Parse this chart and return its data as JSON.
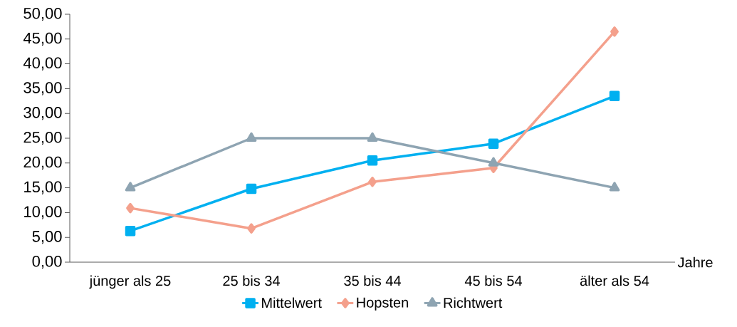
{
  "chart_data": {
    "type": "line",
    "xlabel": "Jahre",
    "categories": [
      "jünger als 25",
      "25 bis 34",
      "35 bis 44",
      "45 bis 54",
      "älter als 54"
    ],
    "series": [
      {
        "name": "Mittelwert",
        "color": "#00b0f0",
        "marker": "square",
        "values": [
          6.3,
          14.8,
          20.5,
          23.9,
          33.5
        ]
      },
      {
        "name": "Hopsten",
        "color": "#f4a08c",
        "marker": "diamond",
        "values": [
          10.9,
          6.8,
          16.2,
          19.0,
          46.5
        ]
      },
      {
        "name": "Richtwert",
        "color": "#8ea4b2",
        "marker": "triangle",
        "values": [
          15,
          25,
          25,
          20,
          15
        ]
      }
    ],
    "ylim": [
      0,
      50
    ],
    "yticks": [
      {
        "value": 0,
        "label": "0,00"
      },
      {
        "value": 5,
        "label": "5,00"
      },
      {
        "value": 10,
        "label": "10,00"
      },
      {
        "value": 15,
        "label": "15,00"
      },
      {
        "value": 20,
        "label": "20,00"
      },
      {
        "value": 25,
        "label": "25,00"
      },
      {
        "value": 30,
        "label": "30,00"
      },
      {
        "value": 35,
        "label": "35,00"
      },
      {
        "value": 40,
        "label": "40,00"
      },
      {
        "value": 45,
        "label": "45,00"
      },
      {
        "value": 50,
        "label": "50,00"
      }
    ],
    "grid": false,
    "legend": "bottom",
    "line_style": "solid"
  }
}
